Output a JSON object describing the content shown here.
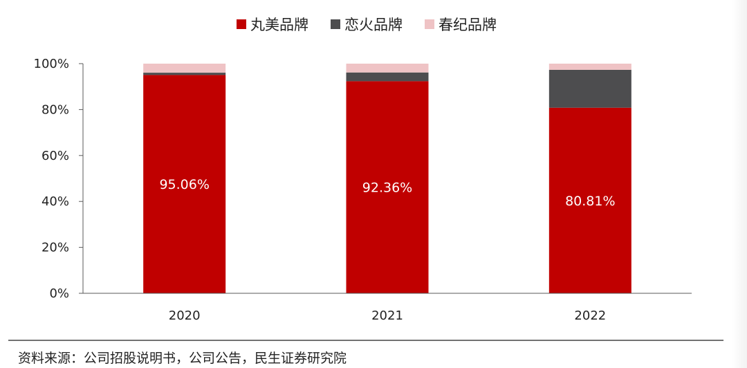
{
  "chart_data": {
    "type": "bar",
    "stacked": true,
    "categories": [
      "2020",
      "2021",
      "2022"
    ],
    "series": [
      {
        "name": "丸美品牌",
        "color": "#C00000",
        "values": [
          95.06,
          92.36,
          80.81
        ],
        "labels": [
          "95.06%",
          "92.36%",
          "80.81%"
        ]
      },
      {
        "name": "恋火品牌",
        "color": "#4D4D4F",
        "values": [
          1.0,
          3.8,
          16.5
        ]
      },
      {
        "name": "春纪品牌",
        "color": "#EFC3C5",
        "values": [
          3.94,
          3.84,
          2.69
        ]
      }
    ],
    "ylim": [
      0,
      100
    ],
    "yticks": [
      "0%",
      "20%",
      "40%",
      "60%",
      "80%",
      "100%"
    ],
    "legend_position": "top-center",
    "grid": false
  },
  "source": "资料来源：公司招股说明书，公司公告，民生证券研究院"
}
